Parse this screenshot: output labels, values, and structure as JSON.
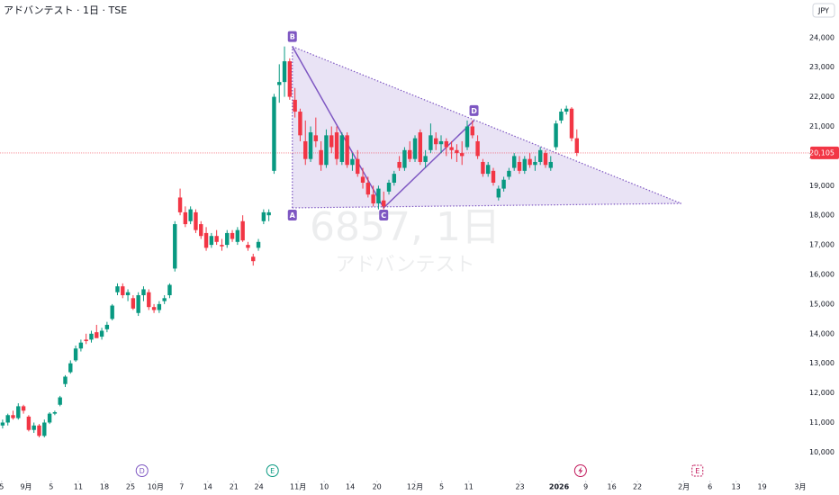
{
  "header": {
    "title": "アドバンテスト · 1日 · TSE",
    "currency": "JPY"
  },
  "watermark": {
    "symbol": "6857, 1日",
    "name": "アドバンテスト"
  },
  "chart_data": {
    "type": "candlestick",
    "up_color": "#089981",
    "down_color": "#f23645",
    "candles": {
      "open": [
        10900,
        11000,
        11250,
        11150,
        11550,
        11200,
        10750,
        10900,
        10550,
        11000,
        11300,
        11600,
        12300,
        12700,
        13100,
        13500,
        13800,
        13800,
        14050,
        13900,
        14150,
        14500,
        15400,
        15600,
        15300,
        15200,
        14700,
        15300,
        15400,
        14900,
        14800,
        15100,
        15300,
        16200,
        18600,
        18100,
        17800,
        18100,
        17700,
        17400,
        17000,
        17300,
        17000,
        17000,
        17400,
        17100,
        17800,
        17000,
        16600,
        16900,
        17800,
        18000,
        19500,
        22400,
        22500,
        23200,
        21900,
        21500,
        20500,
        19900,
        20700,
        20200,
        19700,
        20700,
        20800,
        19800,
        20700,
        19700,
        19900,
        19300,
        19100,
        18700,
        18400,
        18500,
        18800,
        19100,
        19800,
        19600,
        20200,
        19900,
        20800,
        19800,
        20200,
        20600,
        20400,
        20500,
        20300,
        20200,
        20100,
        20300,
        21000,
        20500,
        19800,
        19400,
        19500,
        18600,
        18900,
        19300,
        19600,
        19800,
        19500,
        19900,
        19700,
        19800,
        20100,
        19600,
        20300,
        21200,
        21500,
        21600,
        20600
      ],
      "high": [
        11100,
        11300,
        11400,
        11650,
        11600,
        11250,
        11000,
        10950,
        11100,
        11350,
        11400,
        11900,
        12600,
        13100,
        13600,
        13800,
        14000,
        14100,
        14300,
        14200,
        14400,
        15000,
        15700,
        15700,
        15500,
        15300,
        15400,
        15600,
        15500,
        15000,
        15100,
        15300,
        15700,
        17800,
        18900,
        18300,
        18300,
        18200,
        17800,
        17600,
        17400,
        17500,
        17200,
        17500,
        17500,
        17600,
        18000,
        17100,
        16700,
        17200,
        18200,
        18200,
        22100,
        23100,
        23700,
        23300,
        22300,
        21600,
        21200,
        21000,
        21300,
        20500,
        20900,
        21000,
        21000,
        20800,
        20800,
        20100,
        20200,
        19600,
        19300,
        19000,
        19000,
        18800,
        19200,
        19500,
        20000,
        20300,
        20500,
        20700,
        20900,
        20200,
        21100,
        20800,
        20700,
        20600,
        20500,
        20400,
        20500,
        21200,
        21200,
        20700,
        19900,
        19800,
        19600,
        19000,
        19300,
        19600,
        20100,
        20000,
        20000,
        20100,
        20000,
        20300,
        20200,
        20000,
        21200,
        21600,
        21700,
        21650,
        20900
      ],
      "low": [
        10800,
        10900,
        11100,
        11100,
        11300,
        10700,
        10650,
        10500,
        10500,
        10950,
        11250,
        11550,
        12200,
        12650,
        13050,
        13400,
        13650,
        13700,
        13900,
        13800,
        14050,
        14450,
        15300,
        15200,
        15100,
        14800,
        14600,
        15100,
        14800,
        14700,
        14700,
        15000,
        15200,
        16100,
        18000,
        17600,
        17700,
        17400,
        17200,
        16800,
        16900,
        17000,
        16800,
        16900,
        17100,
        17000,
        17100,
        16800,
        16300,
        16800,
        17700,
        17800,
        19400,
        21800,
        22000,
        21900,
        21300,
        20500,
        19700,
        19800,
        20300,
        19500,
        19600,
        20100,
        19700,
        19700,
        19600,
        19500,
        19300,
        18900,
        18600,
        18300,
        18200,
        18200,
        18700,
        19000,
        19500,
        19500,
        19800,
        19800,
        19700,
        19600,
        20100,
        20200,
        20100,
        20000,
        19900,
        19800,
        19700,
        20200,
        20600,
        19900,
        19300,
        19300,
        19000,
        18500,
        18800,
        19200,
        19500,
        19400,
        19400,
        19600,
        19500,
        19700,
        19600,
        19500,
        20200,
        21100,
        21400,
        20500,
        20000
      ],
      "close": [
        11000,
        11250,
        11150,
        11550,
        11400,
        10750,
        10900,
        10550,
        11000,
        11300,
        11350,
        11850,
        12550,
        13000,
        13500,
        13700,
        13750,
        14000,
        13850,
        14100,
        14300,
        14950,
        15600,
        15300,
        15400,
        14850,
        15300,
        15500,
        14900,
        14800,
        15000,
        15200,
        15650,
        17700,
        18100,
        17700,
        18200,
        17500,
        17300,
        16900,
        17300,
        17100,
        16950,
        17400,
        17200,
        17500,
        17150,
        16900,
        16450,
        17100,
        18100,
        18100,
        22000,
        22500,
        23200,
        22000,
        21500,
        20700,
        19900,
        20800,
        20500,
        19700,
        20700,
        20300,
        19900,
        20700,
        19700,
        19900,
        19400,
        19100,
        18700,
        18400,
        18900,
        18300,
        19100,
        19400,
        19600,
        20200,
        19900,
        20600,
        19800,
        20000,
        20700,
        20400,
        20500,
        20300,
        20200,
        20100,
        20000,
        21000,
        20700,
        20000,
        19400,
        19700,
        19100,
        18900,
        19200,
        19500,
        20000,
        19500,
        19900,
        19700,
        19800,
        20200,
        19700,
        19800,
        21100,
        21500,
        21600,
        20600,
        20105
      ]
    },
    "ylim": [
      9100,
      25270
    ],
    "yticks": [
      {
        "value": 10000,
        "label": "10,000"
      },
      {
        "value": 11000,
        "label": "11,000"
      },
      {
        "value": 12000,
        "label": "12,000"
      },
      {
        "value": 13000,
        "label": "13,000"
      },
      {
        "value": 14000,
        "label": "14,000"
      },
      {
        "value": 15000,
        "label": "15,000"
      },
      {
        "value": 16000,
        "label": "16,000"
      },
      {
        "value": 17000,
        "label": "17,000"
      },
      {
        "value": 18000,
        "label": "18,000"
      },
      {
        "value": 19000,
        "label": "19,000"
      },
      {
        "value": 20000,
        "label": "20,000"
      },
      {
        "value": 21000,
        "label": "21,000"
      },
      {
        "value": 22000,
        "label": "22,000"
      },
      {
        "value": 23000,
        "label": "23,000"
      },
      {
        "value": 24000,
        "label": "24,000"
      }
    ],
    "xlim": [
      -0.5,
      154.7
    ],
    "xticks": [
      {
        "value": -0.2,
        "label": "5"
      },
      {
        "value": 4.5,
        "label": "9月"
      },
      {
        "value": 9.3,
        "label": "5"
      },
      {
        "value": 14.5,
        "label": "11"
      },
      {
        "value": 19.5,
        "label": "18"
      },
      {
        "value": 24.5,
        "label": "25"
      },
      {
        "value": 29.3,
        "label": "10月"
      },
      {
        "value": 34.3,
        "label": "7"
      },
      {
        "value": 39.3,
        "label": "14"
      },
      {
        "value": 44.3,
        "label": "21"
      },
      {
        "value": 49.1,
        "label": "24"
      },
      {
        "value": 56.6,
        "label": "11月"
      },
      {
        "value": 61.6,
        "label": "10"
      },
      {
        "value": 66.6,
        "label": "14"
      },
      {
        "value": 71.7,
        "label": "20"
      },
      {
        "value": 79,
        "label": "12月"
      },
      {
        "value": 84.1,
        "label": "5"
      },
      {
        "value": 89.3,
        "label": "11"
      },
      {
        "value": 99.1,
        "label": "23"
      },
      {
        "value": 106.6,
        "label": "2026"
      },
      {
        "value": 111.7,
        "label": "9"
      },
      {
        "value": 116.7,
        "label": "16"
      },
      {
        "value": 121.6,
        "label": "22"
      },
      {
        "value": 130.5,
        "label": "2月"
      },
      {
        "value": 135.5,
        "label": "6"
      },
      {
        "value": 140.5,
        "label": "13"
      },
      {
        "value": 145.5,
        "label": "19"
      },
      {
        "value": 152.8,
        "label": "3月"
      }
    ],
    "last_price": {
      "value": 20105,
      "label": "20,105",
      "color": "#f23645"
    },
    "pattern": {
      "color": "#7e57c2",
      "points": [
        {
          "label": "A",
          "x": 55.5,
          "y": 18250
        },
        {
          "label": "B",
          "x": 55.5,
          "y": 23700
        },
        {
          "label": "C",
          "x": 73,
          "y": 18250
        },
        {
          "label": "D",
          "x": 90.3,
          "y": 21200
        }
      ],
      "apex": {
        "x": 130,
        "y": 18400
      }
    },
    "events": [
      {
        "x": 26.7,
        "label": "D",
        "color": "#7e57c2"
      },
      {
        "x": 51.7,
        "label": "E",
        "color": "#089981"
      },
      {
        "x": 110.7,
        "color": "#c2185b"
      },
      {
        "x": 133.1,
        "label": "E",
        "color": "#c2185b",
        "future": true
      }
    ]
  }
}
